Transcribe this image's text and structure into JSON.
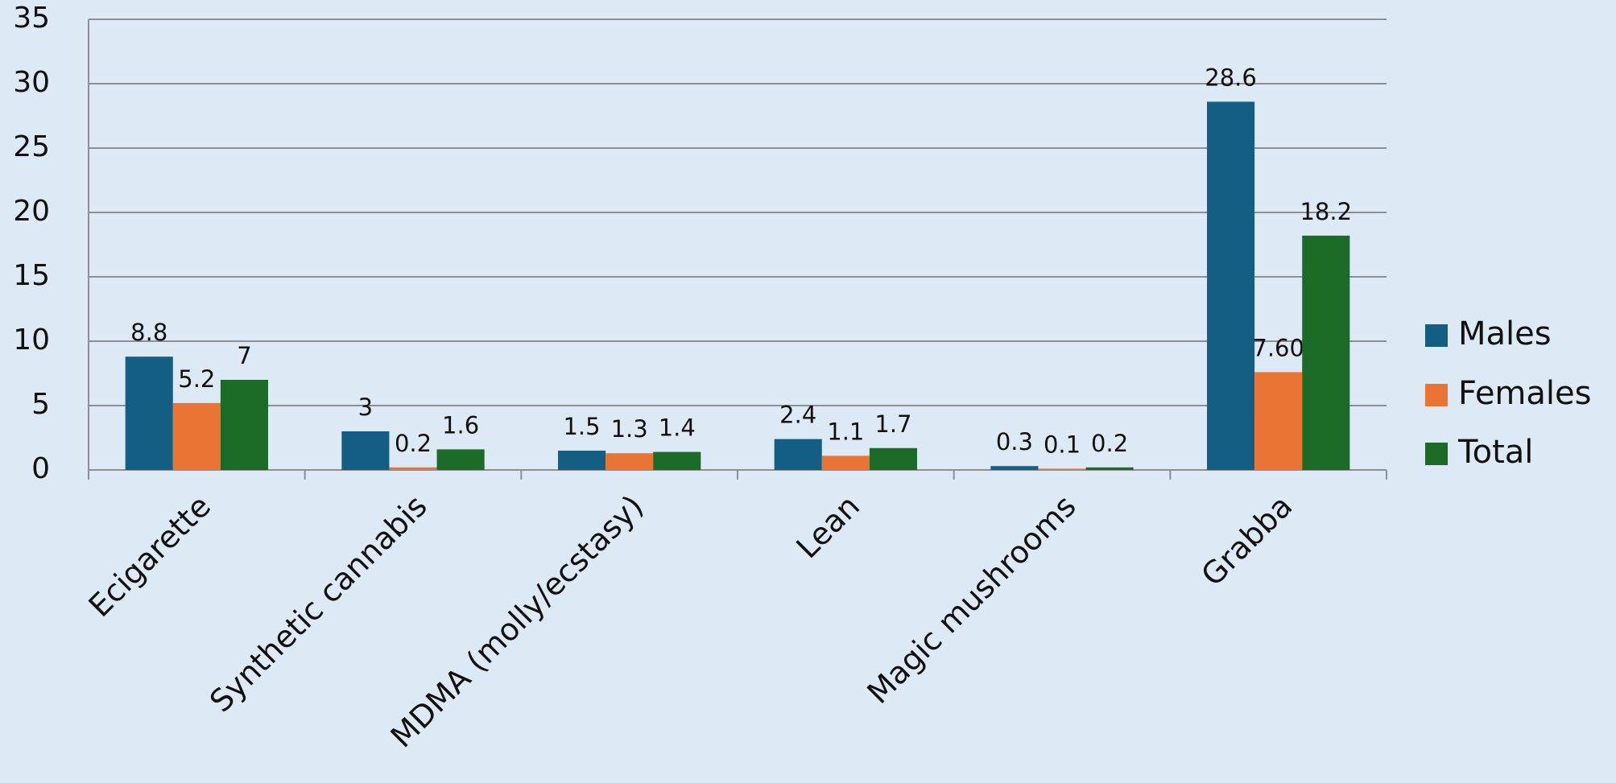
{
  "chart_data": {
    "type": "bar",
    "categories": [
      "Ecigarette",
      "Synthetic cannabis",
      "MDMA (molly/ecstasy)",
      "Lean",
      "Magic mushrooms",
      "Grabba"
    ],
    "series": [
      {
        "name": "Males",
        "color": "#155e83",
        "values": [
          8.8,
          3,
          1.5,
          2.4,
          0.3,
          28.6
        ]
      },
      {
        "name": "Females",
        "color": "#e97434",
        "values": [
          5.2,
          0.2,
          1.3,
          1.1,
          0.1,
          7.6
        ],
        "value_labels": [
          "5.2",
          "0.2",
          "1.3",
          "1.1",
          "0.1",
          "7.60"
        ]
      },
      {
        "name": "Total",
        "color": "#1b6b27",
        "values": [
          7,
          1.6,
          1.4,
          1.7,
          0.2,
          18.2
        ]
      }
    ],
    "ylim": [
      0,
      35
    ],
    "yticks": [
      0,
      5,
      10,
      15,
      20,
      25,
      30,
      35
    ],
    "grid": true,
    "legend": "right"
  }
}
